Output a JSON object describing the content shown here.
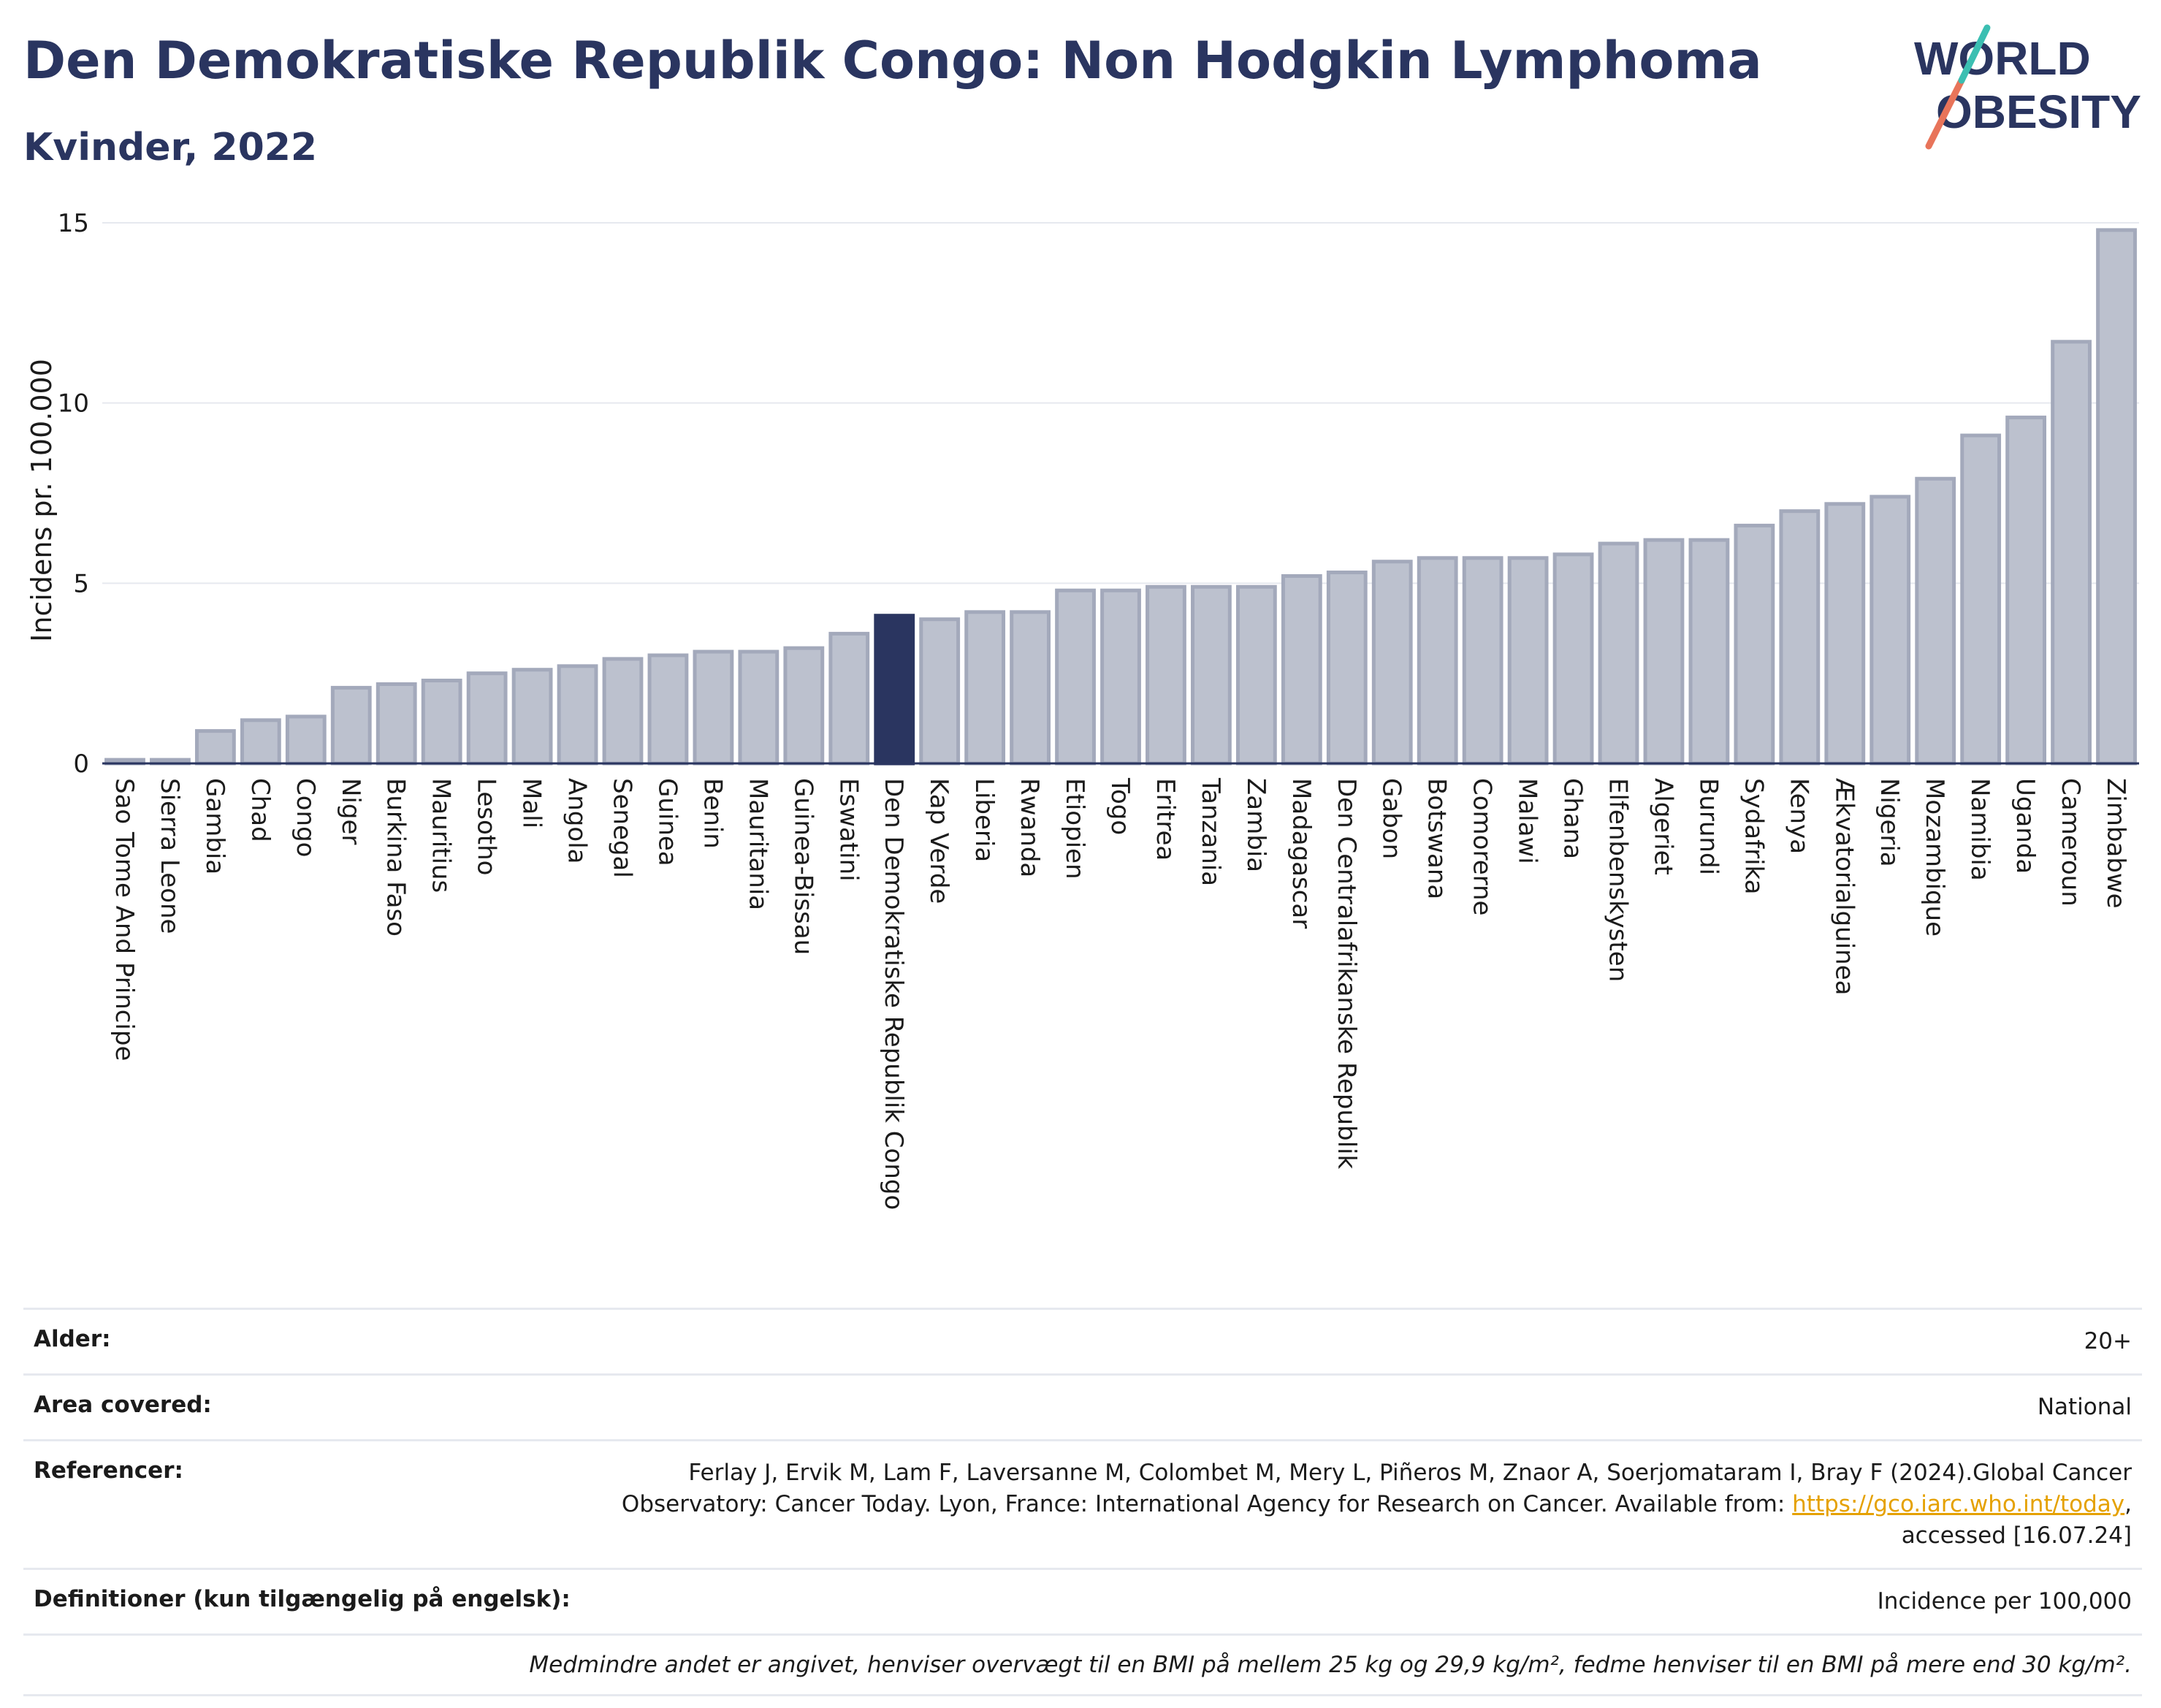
{
  "header": {
    "title": "Den Demokratiske Republik Congo: Non Hodgkin Lymphoma",
    "subtitle": "Kvinder, 2022"
  },
  "logo": {
    "line1": "WORLD",
    "line2": "OBESITY",
    "accent_colors": [
      "#e8745a",
      "#3bbfb2"
    ]
  },
  "chart_data": {
    "type": "bar",
    "ylabel": "Incidens pr. 100.000",
    "ylim": [
      0,
      15
    ],
    "yticks": [
      0,
      5,
      10,
      15
    ],
    "grid": true,
    "highlight": "Den Demokratiske Republik Congo",
    "colors": {
      "bar": "#bcc1ce",
      "bar_edge": "#a3a9bb",
      "highlight": "#2a3560",
      "grid": "#e6e9ef",
      "axis": "#2a3560"
    },
    "categories": [
      "Sao Tome And Principe",
      "Sierra Leone",
      "Gambia",
      "Chad",
      "Congo",
      "Niger",
      "Burkina Faso",
      "Mauritius",
      "Lesotho",
      "Mali",
      "Angola",
      "Senegal",
      "Guinea",
      "Benin",
      "Mauritania",
      "Guinea-Bissau",
      "Eswatini",
      "Den Demokratiske Republik Congo",
      "Kap Verde",
      "Liberia",
      "Rwanda",
      "Etiopien",
      "Togo",
      "Eritrea",
      "Tanzania",
      "Zambia",
      "Madagascar",
      "Den Centralafrikanske Republik",
      "Gabon",
      "Botswana",
      "Comorerne",
      "Malawi",
      "Ghana",
      "Elfenbenskysten",
      "Algeriet",
      "Burundi",
      "Sydafrika",
      "Kenya",
      "Ækvatorialguinea",
      "Nigeria",
      "Mozambique",
      "Namibia",
      "Uganda",
      "Cameroun",
      "Zimbabwe"
    ],
    "values": [
      0.1,
      0.1,
      0.9,
      1.2,
      1.3,
      2.1,
      2.2,
      2.3,
      2.5,
      2.6,
      2.7,
      2.9,
      3.0,
      3.1,
      3.1,
      3.2,
      3.6,
      4.1,
      4.0,
      4.2,
      4.2,
      4.8,
      4.8,
      4.9,
      4.9,
      4.9,
      5.2,
      5.3,
      5.6,
      5.7,
      5.7,
      5.7,
      5.8,
      6.1,
      6.2,
      6.2,
      6.6,
      7.0,
      7.2,
      7.4,
      7.9,
      9.1,
      9.6,
      11.7,
      14.8
    ]
  },
  "meta": {
    "rows": [
      {
        "label": "Alder:",
        "value": "20+"
      },
      {
        "label": "Area covered:",
        "value": "National"
      },
      {
        "label": "Referencer:",
        "value_line1": "Ferlay J, Ervik M, Lam F, Laversanne M, Colombet M, Mery L, Piñeros M, Znaor A, Soerjomataram I, Bray F (2024).Global Cancer",
        "value_line2_pre": "Observatory: Cancer Today. Lyon, France: International Agency for Research on Cancer. Available from: ",
        "value_link": "https://gco.iarc.who.int/today",
        "value_line2_post": ",",
        "value_line3": "accessed [16.07.24]"
      },
      {
        "label": "Definitioner (kun tilgængelig på engelsk):",
        "value": "Incidence per 100,000"
      }
    ],
    "note": "Medmindre andet er angivet, henviser overvægt til en BMI på mellem 25 kg og 29,9 kg/m², fedme henviser til en BMI på mere end 30 kg/m²."
  }
}
